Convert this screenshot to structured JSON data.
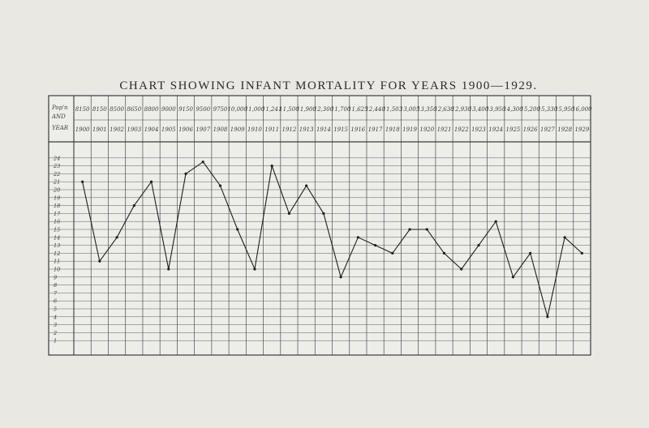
{
  "chart_data": {
    "type": "line",
    "title": "CHART SHOWING INFANT MORTALITY FOR YEARS 1900—1929.",
    "row_labels": {
      "pop": "Pop'n",
      "and": "AND",
      "year": "YEAR"
    },
    "years": [
      "1900",
      "1901",
      "1902",
      "1903",
      "1904",
      "1905",
      "1906",
      "1907",
      "1908",
      "1909",
      "1910",
      "1911",
      "1912",
      "1913",
      "1914",
      "1915",
      "1916",
      "1917",
      "1918",
      "1919",
      "1920",
      "1921",
      "1922",
      "1923",
      "1924",
      "1925",
      "1926",
      "1927",
      "1928",
      "1929"
    ],
    "population": [
      "8150",
      "8150",
      "8500",
      "8650",
      "8800",
      "9000",
      "9150",
      "9500",
      "9750",
      "10,000",
      "11,000",
      "11,241",
      "11,500",
      "11,900",
      "12,300",
      "11,700",
      "11,625",
      "12,440",
      "11,503",
      "13,005",
      "13,350",
      "12,630",
      "12,930",
      "13,400",
      "13,950",
      "14,300",
      "15,200",
      "15,330",
      "15,950",
      "16,000"
    ],
    "y_ticks": [
      "1",
      "2",
      "3",
      "4",
      "5",
      "6",
      "7",
      "8",
      "9",
      "10",
      "11",
      "12",
      "13",
      "14",
      "15",
      "16",
      "17",
      "18",
      "19",
      "20",
      "21",
      "22",
      "23",
      "24"
    ],
    "ylim": [
      0,
      25
    ],
    "values": [
      21,
      11,
      14,
      18,
      21,
      10,
      22,
      23.5,
      20.5,
      15,
      10,
      23,
      17,
      20.5,
      17,
      9,
      14,
      13,
      12,
      15,
      15,
      12,
      10,
      13,
      16,
      9,
      12,
      4,
      14,
      12
    ],
    "grid": true
  }
}
